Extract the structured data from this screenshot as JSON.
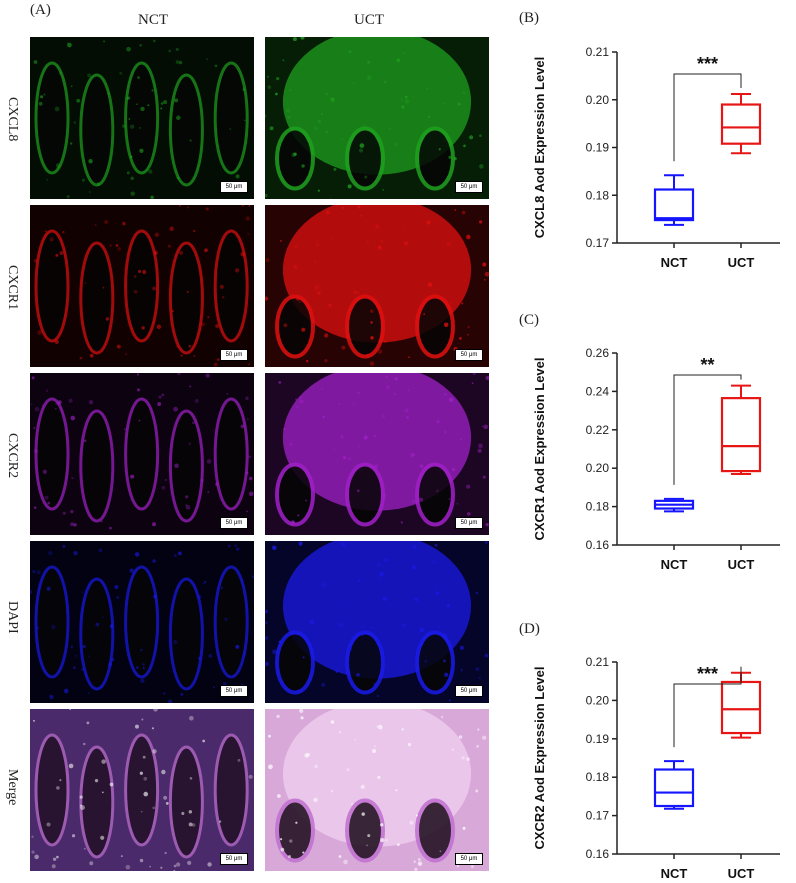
{
  "panel_a": {
    "label": "(A)",
    "columns": [
      "NCT",
      "UCT"
    ],
    "rows": [
      "CXCL8",
      "CXCR1",
      "CXCR2",
      "DAPI",
      "Merge"
    ],
    "scalebar": "50 μm",
    "row_colors": [
      "#1fa01f",
      "#e01010",
      "#a020c8",
      "#1a1ae8",
      "#b070b0"
    ]
  },
  "chart_data": [
    {
      "type": "box",
      "panel_label": "(B)",
      "ylabel": "CXCL8 Aod Expression Level",
      "categories": [
        "NCT",
        "UCT"
      ],
      "colors": [
        "#1515ff",
        "#e81515"
      ],
      "ylim": [
        0.17,
        0.21
      ],
      "yticks": [
        "0.17",
        "0.18",
        "0.19",
        "0.20",
        "0.21"
      ],
      "boxes": [
        {
          "name": "NCT",
          "min": 0.1738,
          "q1": 0.1748,
          "median": 0.1752,
          "q3": 0.1812,
          "max": 0.1842
        },
        {
          "name": "UCT",
          "min": 0.1888,
          "q1": 0.1908,
          "median": 0.1942,
          "q3": 0.199,
          "max": 0.2012
        }
      ],
      "significance": "***"
    },
    {
      "type": "box",
      "panel_label": "(C)",
      "ylabel": "CXCR1 Aod Expression Level",
      "categories": [
        "NCT",
        "UCT"
      ],
      "colors": [
        "#1515ff",
        "#e81515"
      ],
      "ylim": [
        0.16,
        0.26
      ],
      "yticks": [
        "0.16",
        "0.18",
        "0.20",
        "0.22",
        "0.24",
        "0.26"
      ],
      "boxes": [
        {
          "name": "NCT",
          "min": 0.1775,
          "q1": 0.179,
          "median": 0.181,
          "q3": 0.183,
          "max": 0.184
        },
        {
          "name": "UCT",
          "min": 0.197,
          "q1": 0.1985,
          "median": 0.2115,
          "q3": 0.2365,
          "max": 0.243
        }
      ],
      "significance": "**"
    },
    {
      "type": "box",
      "panel_label": "(D)",
      "ylabel": "CXCR2 Aod Expression Level",
      "categories": [
        "NCT",
        "UCT"
      ],
      "colors": [
        "#1515ff",
        "#e81515"
      ],
      "ylim": [
        0.16,
        0.21
      ],
      "yticks": [
        "0.16",
        "0.17",
        "0.18",
        "0.19",
        "0.20",
        "0.21"
      ],
      "boxes": [
        {
          "name": "NCT",
          "min": 0.1718,
          "q1": 0.1725,
          "median": 0.176,
          "q3": 0.182,
          "max": 0.1842
        },
        {
          "name": "UCT",
          "min": 0.1903,
          "q1": 0.1915,
          "median": 0.1977,
          "q3": 0.2048,
          "max": 0.2072
        }
      ],
      "significance": "***"
    }
  ]
}
